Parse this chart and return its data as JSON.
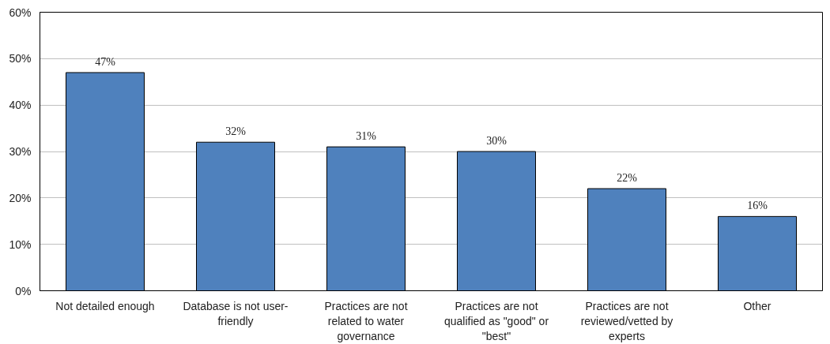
{
  "chart_data": {
    "type": "bar",
    "categories": [
      "Not detailed enough",
      "Database is not user-friendly",
      "Practices are not related to water governance",
      "Practices are not qualified as \"good\" or \"best\"",
      "Practices are not reviewed/vetted by experts",
      "Other"
    ],
    "values": [
      47,
      32,
      31,
      30,
      22,
      16
    ],
    "value_labels": [
      "47%",
      "32%",
      "31%",
      "30%",
      "22%",
      "16%"
    ],
    "color": "#4f81bd",
    "ylim": [
      0,
      60
    ],
    "yticks": [
      {
        "value": 0,
        "label": "0%"
      },
      {
        "value": 10,
        "label": "10%"
      },
      {
        "value": 20,
        "label": "20%"
      },
      {
        "value": 30,
        "label": "30%"
      },
      {
        "value": 40,
        "label": "40%"
      },
      {
        "value": 50,
        "label": "50%"
      },
      {
        "value": 60,
        "label": "60%"
      }
    ],
    "grid": "y"
  }
}
